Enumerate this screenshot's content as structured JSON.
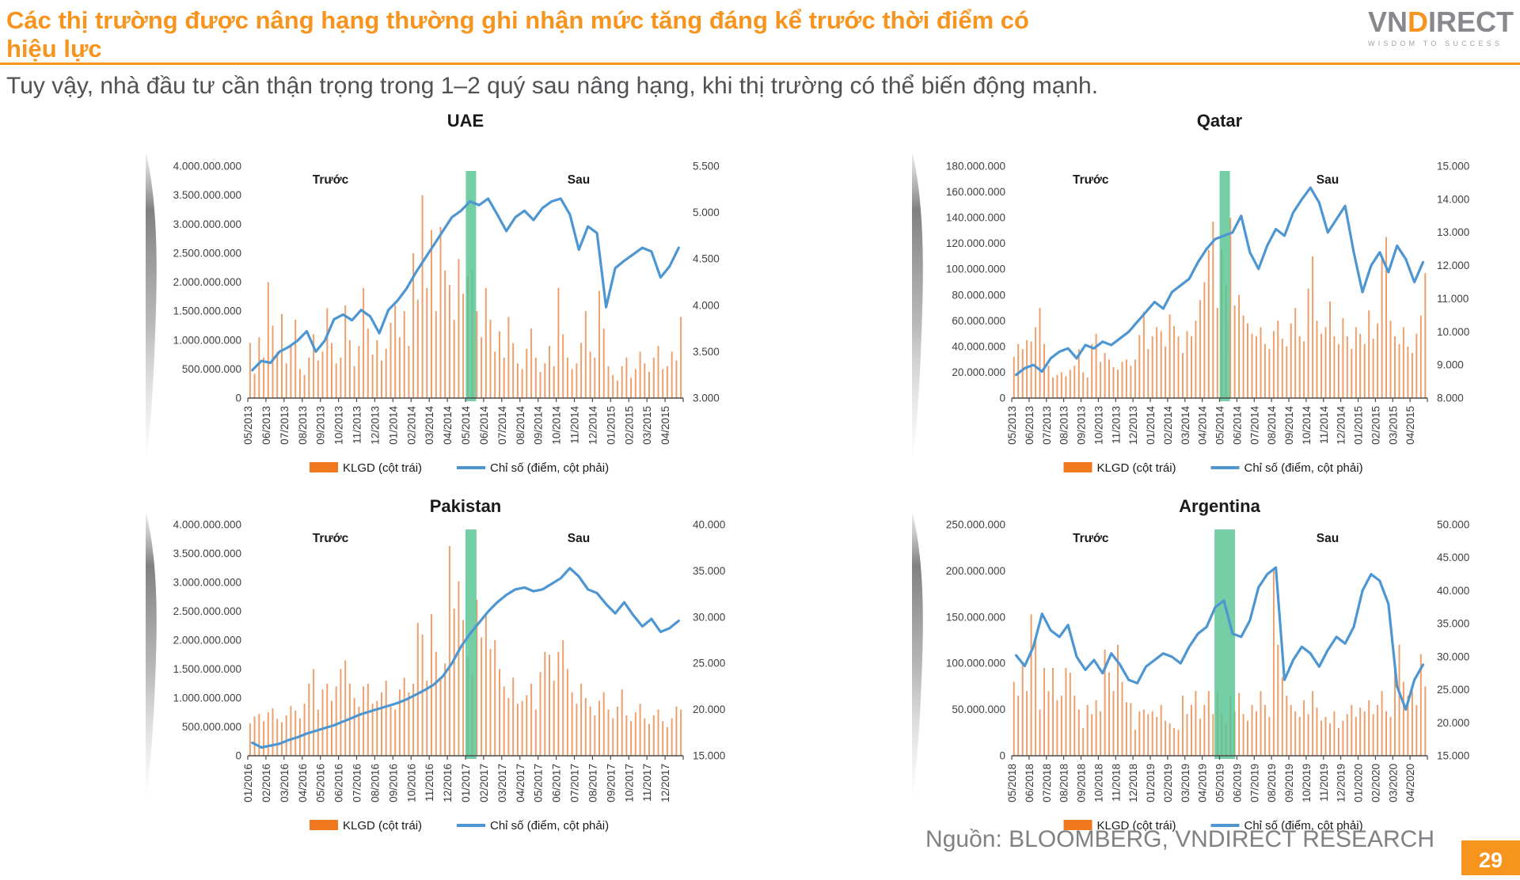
{
  "header": {
    "title": "Các thị trường được nâng hạng thường ghi nhận mức tăng đáng kể trước thời điểm có hiệu lực",
    "subtitle": "Tuy vậy, nhà đầu tư cần thận trọng trong 1–2 quý sau nâng hạng, khi thị trường có thể biến động mạnh.",
    "logo": {
      "part1": "VN",
      "part2": "D",
      "part3": "IRECT",
      "tagline": "WISDOM TO SUCCESS"
    }
  },
  "footer": {
    "source": "Nguồn: BLOOMBERG, VNDIRECT RESEARCH",
    "page": "29"
  },
  "legend": {
    "volume": "KLGD (cột trái)",
    "index": "Chỉ số (điểm, cột phải)"
  },
  "annotations": {
    "before": "Trước",
    "after": "Sau"
  },
  "colors": {
    "title_orange": "#F7941D",
    "bar_orange": "#EDA06C",
    "legend_orange": "#F07920",
    "line_blue": "#4D96D2",
    "band_green": "#55C393",
    "axis_text": "#3F4042",
    "chart_title": "#1A1A1A"
  },
  "chart_data": [
    {
      "type": "combo",
      "title": "UAE",
      "event_band": {
        "month": "05/2014",
        "month_index": 12
      },
      "categories": [
        "05/2013",
        "06/2013",
        "07/2013",
        "08/2013",
        "09/2013",
        "10/2013",
        "11/2013",
        "12/2013",
        "01/2014",
        "02/2014",
        "03/2014",
        "04/2014",
        "05/2014",
        "06/2014",
        "07/2014",
        "08/2014",
        "09/2014",
        "10/2014",
        "11/2014",
        "12/2014",
        "01/2015",
        "02/2015",
        "03/2015",
        "04/2015"
      ],
      "left_axis": {
        "ticks": [
          "4.000.000.000",
          "3.500.000.000",
          "3.000.000.000",
          "2.500.000.000",
          "2.000.000.000",
          "1.500.000.000",
          "1.000.000.000",
          "500.000.000",
          "0"
        ],
        "min": 0,
        "max": 4000,
        "unit": "million shares"
      },
      "right_axis": {
        "ticks": [
          "5.500",
          "5.000",
          "4.500",
          "4.000",
          "3.500",
          "3.000"
        ],
        "min": 3000,
        "max": 5500
      },
      "series": [
        {
          "name": "KLGD (cột trái)",
          "kind": "bar",
          "axis": "left",
          "values": [
            950,
            420,
            1050,
            700,
            2000,
            1250,
            800,
            1450,
            600,
            900,
            1350,
            500,
            400,
            700,
            1100,
            650,
            800,
            1550,
            950,
            600,
            700,
            1600,
            1000,
            550,
            900,
            1900,
            1200,
            750,
            1000,
            650,
            850,
            1300,
            1600,
            1050,
            1500,
            900,
            2500,
            1700,
            3500,
            1900,
            2900,
            1500,
            2950,
            2200,
            1950,
            1350,
            2400,
            1800,
            2100,
            2200,
            1500,
            1050,
            1900,
            1350,
            800,
            1150,
            700,
            1400,
            950,
            600,
            500,
            850,
            1200,
            700,
            450,
            600,
            900,
            550,
            1900,
            1100,
            700,
            500,
            600,
            950,
            1500,
            800,
            700,
            1850,
            1200,
            550,
            400,
            300,
            550,
            700,
            350,
            500,
            800,
            600,
            450,
            700,
            900,
            500,
            550,
            800,
            650,
            1400
          ]
        },
        {
          "name": "Chỉ số (điểm, cột phải)",
          "kind": "line",
          "axis": "right",
          "values": [
            3300,
            3400,
            3380,
            3500,
            3550,
            3620,
            3720,
            3500,
            3620,
            3850,
            3900,
            3840,
            3950,
            3880,
            3700,
            3950,
            4050,
            4180,
            4350,
            4500,
            4650,
            4800,
            4950,
            5020,
            5120,
            5080,
            5150,
            4980,
            4800,
            4950,
            5020,
            4920,
            5050,
            5120,
            5150,
            4980,
            4600,
            4850,
            4780,
            3980,
            4400,
            4480,
            4550,
            4620,
            4580,
            4300,
            4420,
            4620
          ]
        }
      ]
    },
    {
      "type": "combo",
      "title": "Qatar",
      "event_band": {
        "month": "05/2014",
        "month_index": 12
      },
      "categories": [
        "05/2013",
        "06/2013",
        "07/2013",
        "08/2013",
        "09/2013",
        "10/2013",
        "11/2013",
        "12/2013",
        "01/2014",
        "02/2014",
        "03/2014",
        "04/2014",
        "05/2014",
        "06/2014",
        "07/2014",
        "08/2014",
        "09/2014",
        "10/2014",
        "11/2014",
        "12/2014",
        "01/2015",
        "02/2015",
        "03/2015",
        "04/2015"
      ],
      "left_axis": {
        "ticks": [
          "180.000.000",
          "160.000.000",
          "140.000.000",
          "120.000.000",
          "100.000.000",
          "80.000.000",
          "60.000.000",
          "40.000.000",
          "20.000.000",
          "0"
        ],
        "min": 0,
        "max": 180,
        "unit": "million shares"
      },
      "right_axis": {
        "ticks": [
          "15.000",
          "14.000",
          "13.000",
          "12.000",
          "11.000",
          "10.000",
          "9.000",
          "8.000"
        ],
        "min": 8000,
        "max": 15000
      },
      "series": [
        {
          "name": "KLGD (cột trái)",
          "kind": "bar",
          "axis": "left",
          "values": [
            32,
            42,
            38,
            45,
            44,
            55,
            70,
            42,
            25,
            16,
            18,
            20,
            17,
            22,
            25,
            38,
            20,
            16,
            42,
            50,
            28,
            35,
            30,
            24,
            22,
            28,
            30,
            25,
            30,
            49,
            67,
            38,
            48,
            55,
            52,
            40,
            65,
            56,
            48,
            35,
            52,
            48,
            60,
            76,
            90,
            115,
            137,
            70,
            116,
            88,
            140,
            72,
            80,
            64,
            58,
            50,
            48,
            55,
            42,
            38,
            52,
            60,
            46,
            40,
            58,
            70,
            48,
            44,
            85,
            110,
            60,
            50,
            55,
            75,
            48,
            42,
            62,
            48,
            38,
            55,
            50,
            42,
            68,
            46,
            58,
            110,
            125,
            60,
            48,
            42,
            55,
            40,
            35,
            50,
            64,
            97
          ]
        },
        {
          "name": "Chỉ số (điểm, cột phải)",
          "kind": "line",
          "axis": "right",
          "values": [
            8700,
            8900,
            9000,
            8800,
            9200,
            9400,
            9500,
            9200,
            9600,
            9500,
            9700,
            9600,
            9800,
            10000,
            10300,
            10600,
            10900,
            10700,
            11200,
            11400,
            11600,
            12100,
            12500,
            12800,
            12900,
            13000,
            13500,
            12400,
            11900,
            12600,
            13100,
            12900,
            13600,
            14000,
            14350,
            13900,
            13000,
            13400,
            13800,
            12400,
            11200,
            12000,
            12400,
            11800,
            12600,
            12200,
            11500,
            12100
          ]
        }
      ]
    },
    {
      "type": "combo",
      "title": "Pakistan",
      "event_band": {
        "month": "01/2017",
        "month_index": 12
      },
      "categories": [
        "01/2016",
        "02/2016",
        "03/2016",
        "04/2016",
        "05/2016",
        "06/2016",
        "07/2016",
        "08/2016",
        "09/2016",
        "10/2016",
        "11/2016",
        "12/2016",
        "01/2017",
        "02/2017",
        "03/2017",
        "04/2017",
        "05/2017",
        "06/2017",
        "07/2017",
        "08/2017",
        "09/2017",
        "10/2017",
        "11/2017",
        "12/2017"
      ],
      "left_axis": {
        "ticks": [
          "4.000.000.000",
          "3.500.000.000",
          "3.000.000.000",
          "2.500.000.000",
          "2.000.000.000",
          "1.500.000.000",
          "1.000.000.000",
          "500.000.000",
          "0"
        ],
        "min": 0,
        "max": 4000,
        "unit": "million shares"
      },
      "right_axis": {
        "ticks": [
          "40.000",
          "35.000",
          "30.000",
          "25.000",
          "20.000",
          "15.000"
        ],
        "min": 15000,
        "max": 40000
      },
      "series": [
        {
          "name": "KLGD (cột trái)",
          "kind": "bar",
          "axis": "left",
          "values": [
            560,
            680,
            720,
            600,
            750,
            820,
            640,
            580,
            700,
            860,
            780,
            650,
            900,
            1250,
            1500,
            800,
            1150,
            1250,
            950,
            1200,
            1500,
            1650,
            1250,
            1000,
            850,
            1200,
            1250,
            900,
            950,
            1100,
            1300,
            850,
            800,
            1150,
            1350,
            1100,
            1250,
            2300,
            2100,
            1300,
            2450,
            1800,
            1350,
            1600,
            3630,
            2550,
            3020,
            2350,
            1700,
            1400,
            2700,
            2050,
            2450,
            1850,
            2000,
            1500,
            1200,
            1000,
            1350,
            900,
            950,
            1050,
            1250,
            800,
            1450,
            1800,
            1750,
            1300,
            1800,
            2000,
            1500,
            1100,
            900,
            1250,
            1000,
            850,
            700,
            950,
            1100,
            800,
            650,
            850,
            1150,
            700,
            600,
            750,
            900,
            650,
            550,
            700,
            800,
            600,
            500,
            650,
            850,
            800
          ]
        },
        {
          "name": "Chỉ số (điểm, cột phải)",
          "kind": "line",
          "axis": "right",
          "values": [
            16400,
            15900,
            16100,
            16300,
            16700,
            17000,
            17400,
            17700,
            18000,
            18300,
            18700,
            19100,
            19500,
            19800,
            20100,
            20400,
            20700,
            21100,
            21600,
            22100,
            22700,
            23600,
            25000,
            26800,
            28200,
            29400,
            30600,
            31600,
            32400,
            33000,
            33200,
            32800,
            33000,
            33600,
            34200,
            35300,
            34400,
            33000,
            32600,
            31400,
            30400,
            31600,
            30200,
            29000,
            29800,
            28400,
            28800,
            29600
          ]
        }
      ]
    },
    {
      "type": "combo",
      "title": "Argentina",
      "event_band": {
        "month": "05/2019",
        "month_index": 12
      },
      "categories": [
        "05/2018",
        "06/2018",
        "07/2018",
        "08/2018",
        "09/2018",
        "10/2018",
        "11/2018",
        "12/2018",
        "01/2019",
        "02/2019",
        "03/2019",
        "04/2019",
        "05/2019",
        "06/2019",
        "07/2019",
        "08/2019",
        "09/2019",
        "10/2019",
        "11/2019",
        "12/2019",
        "01/2020",
        "02/2020",
        "03/2020",
        "04/2020"
      ],
      "left_axis": {
        "ticks": [
          "250.000.000",
          "200.000.000",
          "150.000.000",
          "100.000.000",
          "50.000.000",
          "0"
        ],
        "min": 0,
        "max": 250,
        "unit": "million shares"
      },
      "right_axis": {
        "ticks": [
          "50.000",
          "45.000",
          "40.000",
          "35.000",
          "30.000",
          "25.000",
          "20.000",
          "15.000"
        ],
        "min": 15000,
        "max": 50000
      },
      "series": [
        {
          "name": "KLGD (cột trái)",
          "kind": "bar",
          "axis": "left",
          "values": [
            80,
            65,
            100,
            70,
            153,
            125,
            50,
            95,
            70,
            95,
            60,
            65,
            95,
            90,
            65,
            50,
            30,
            55,
            45,
            60,
            48,
            115,
            90,
            70,
            120,
            80,
            58,
            57,
            28,
            48,
            50,
            45,
            48,
            42,
            55,
            38,
            35,
            30,
            28,
            65,
            45,
            55,
            70,
            40,
            55,
            70,
            45,
            68,
            45,
            35,
            65,
            48,
            68,
            45,
            38,
            55,
            48,
            70,
            55,
            42,
            200,
            120,
            85,
            65,
            55,
            48,
            42,
            60,
            45,
            70,
            52,
            38,
            42,
            35,
            48,
            30,
            38,
            45,
            55,
            42,
            52,
            48,
            60,
            45,
            55,
            70,
            48,
            42,
            95,
            120,
            80,
            65,
            70,
            55,
            110,
            75
          ]
        },
        {
          "name": "Chỉ số (điểm, cột phải)",
          "kind": "line",
          "axis": "right",
          "values": [
            30200,
            28600,
            31500,
            36500,
            34000,
            33000,
            34800,
            30000,
            28000,
            29500,
            27500,
            30500,
            28800,
            26500,
            26000,
            28500,
            29500,
            30500,
            30000,
            29000,
            31500,
            33500,
            34500,
            37500,
            38500,
            33500,
            33000,
            35500,
            40500,
            42500,
            43500,
            26500,
            29500,
            31500,
            30500,
            28500,
            31000,
            33000,
            32000,
            34500,
            40000,
            42500,
            41500,
            38000,
            25500,
            22000,
            26500,
            28800
          ]
        }
      ]
    }
  ]
}
